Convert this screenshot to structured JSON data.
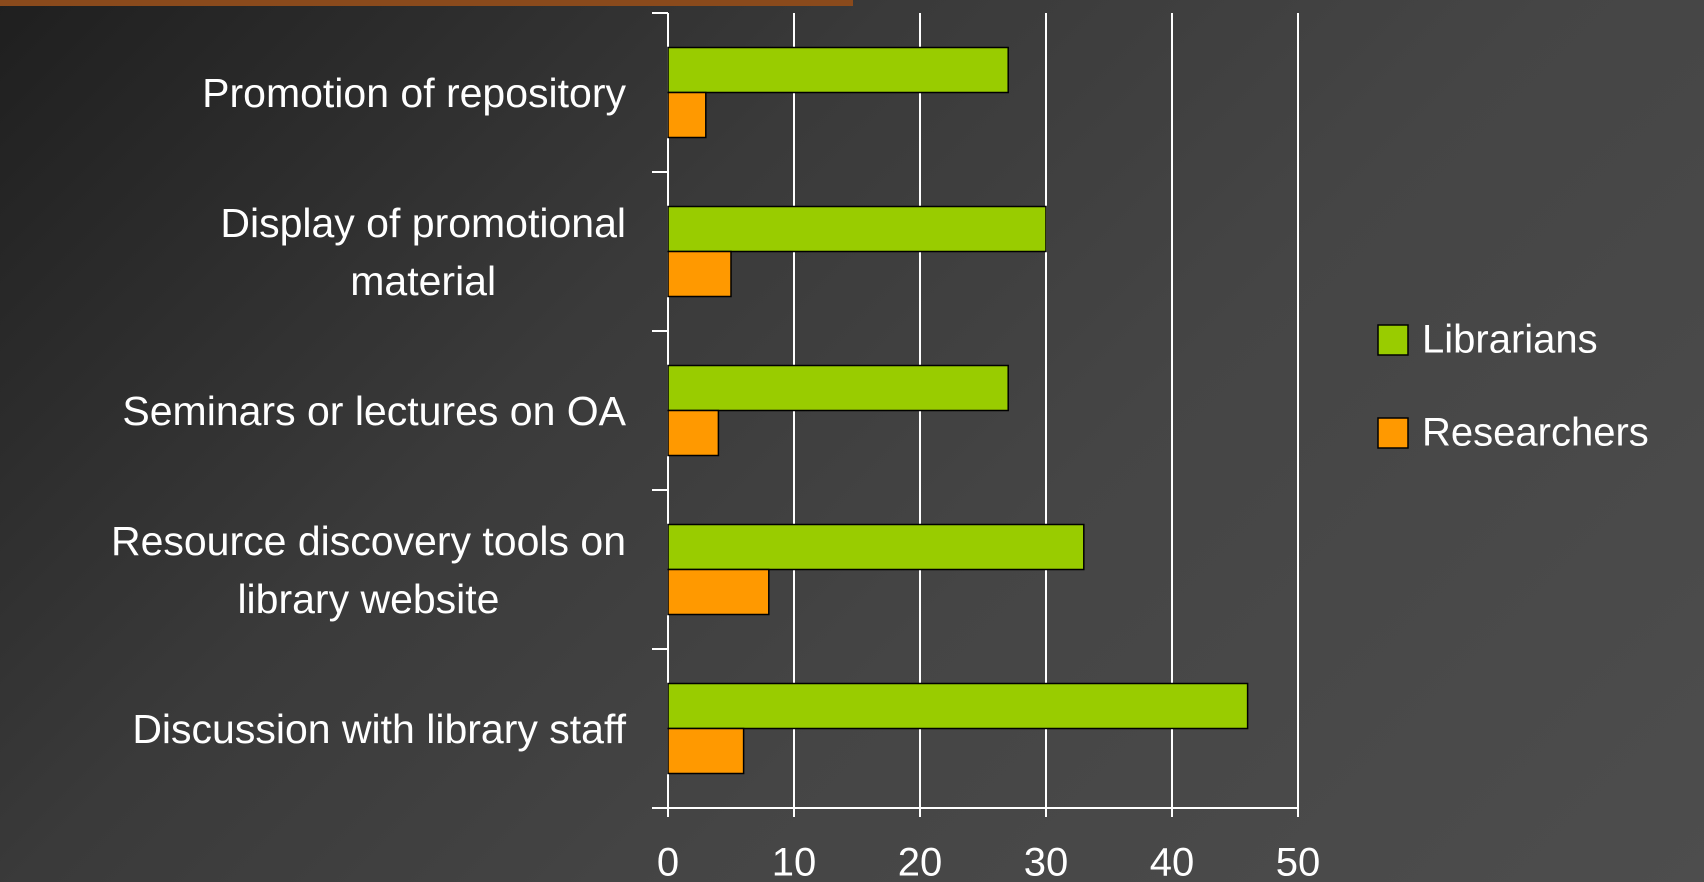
{
  "chart_data": {
    "type": "bar",
    "orientation": "horizontal",
    "categories": [
      "Promotion of repository",
      "Display of promotional\nmaterial",
      "Seminars or lectures on OA",
      "Resource discovery tools on\nlibrary website",
      "Discussion with library staff"
    ],
    "series": [
      {
        "name": "Librarians",
        "color": "#99cc00",
        "values": [
          27,
          30,
          27,
          33,
          46
        ]
      },
      {
        "name": "Researchers",
        "color": "#ff9900",
        "values": [
          3,
          5,
          4,
          8,
          6
        ]
      }
    ],
    "xlim": [
      0,
      50
    ],
    "xticks": [
      0,
      10,
      20,
      30,
      40,
      50
    ],
    "grid": true,
    "legend": "right"
  }
}
